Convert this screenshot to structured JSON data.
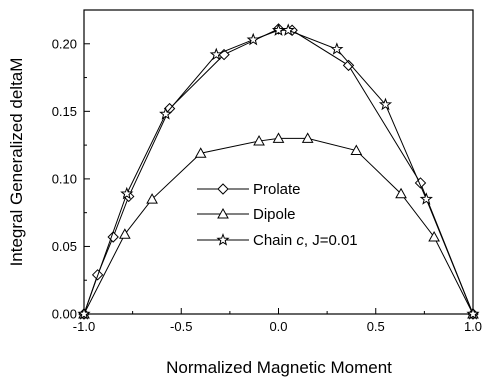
{
  "chart_data": {
    "type": "line",
    "xlabel": "Normalized Magnetic Moment",
    "ylabel": "Integral Generalized deltaM",
    "xlim": [
      -1.0,
      1.0
    ],
    "ylim": [
      0.0,
      0.225
    ],
    "x_ticks": [
      -1.0,
      -0.5,
      0.0,
      0.5,
      1.0
    ],
    "x_tick_labels": [
      "-1.0",
      "-0.5",
      "0.0",
      "0.5",
      "1.0"
    ],
    "y_ticks": [
      0.0,
      0.05,
      0.1,
      0.15,
      0.2
    ],
    "y_tick_labels": [
      "0.00",
      "0.05",
      "0.10",
      "0.15",
      "0.20"
    ],
    "grid": false,
    "legend_position": "center",
    "series": [
      {
        "name": "Prolate",
        "marker": "diamond",
        "x": [
          -1.0,
          -0.93,
          -0.85,
          -0.77,
          -0.56,
          -0.28,
          0.0,
          0.07,
          0.36,
          0.73,
          1.0
        ],
        "y": [
          0.0,
          0.029,
          0.057,
          0.087,
          0.152,
          0.192,
          0.211,
          0.21,
          0.184,
          0.097,
          0.0
        ]
      },
      {
        "name": "Dipole",
        "marker": "triangle",
        "x": [
          -1.0,
          -0.79,
          -0.65,
          -0.4,
          -0.1,
          0.0,
          0.15,
          0.4,
          0.63,
          0.8,
          1.0
        ],
        "y": [
          0.0,
          0.059,
          0.085,
          0.119,
          0.128,
          0.13,
          0.13,
          0.121,
          0.089,
          0.057,
          0.0
        ]
      },
      {
        "name": "Chain c, J=0.01",
        "name_parts": [
          "Chain ",
          "c",
          ", J=0.01"
        ],
        "marker": "star",
        "x": [
          -1.0,
          -0.78,
          -0.58,
          -0.32,
          -0.13,
          0.0,
          0.05,
          0.3,
          0.55,
          0.76,
          1.0
        ],
        "y": [
          0.0,
          0.089,
          0.148,
          0.192,
          0.203,
          0.21,
          0.21,
          0.196,
          0.155,
          0.085,
          0.0
        ]
      }
    ]
  }
}
